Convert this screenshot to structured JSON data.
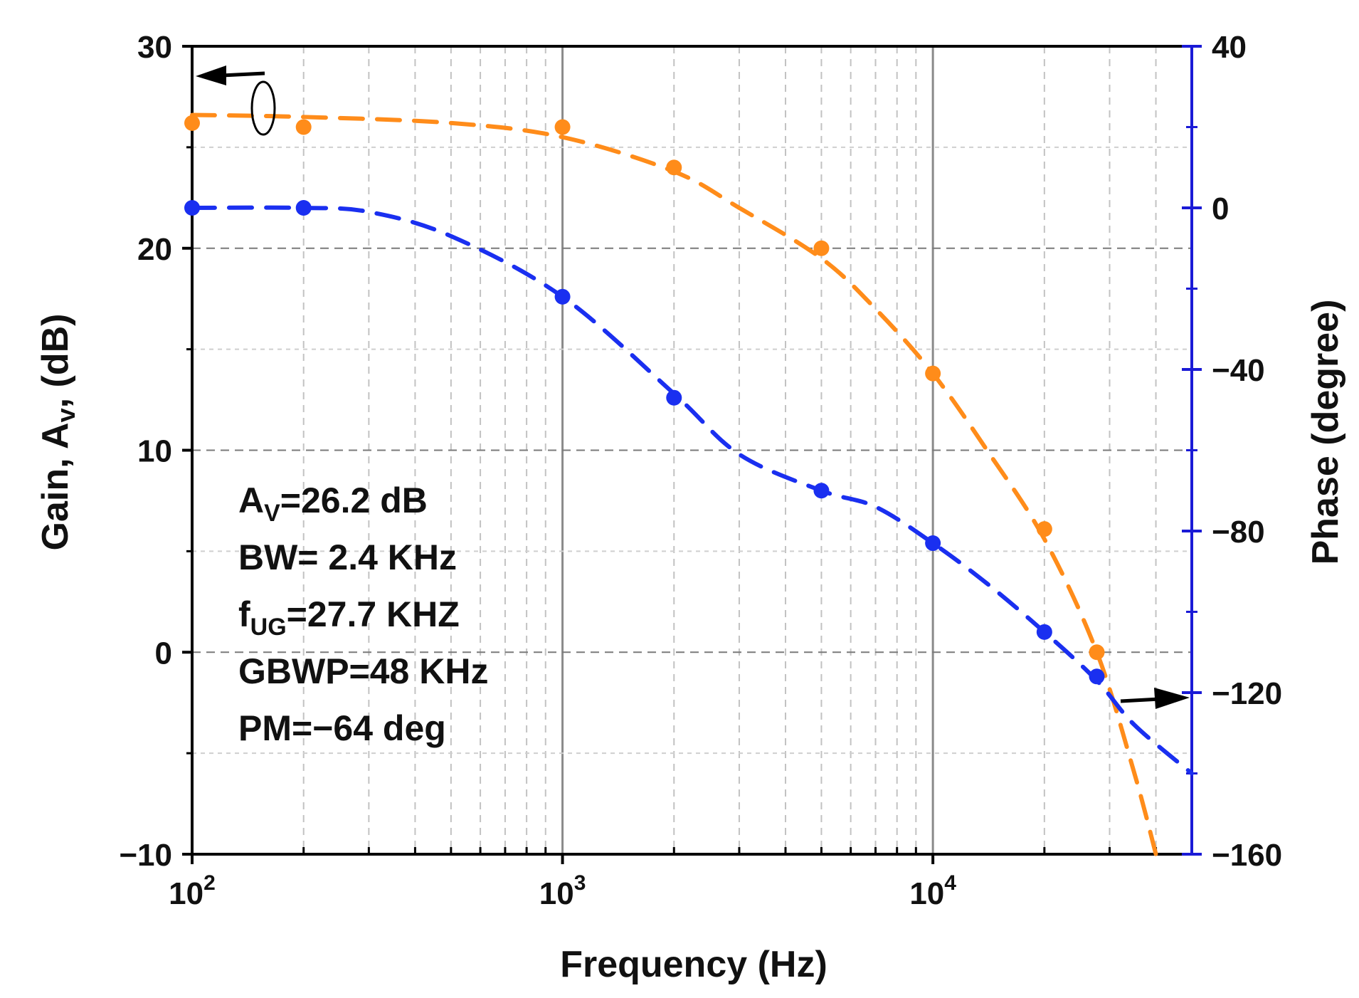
{
  "chart_data": {
    "type": "line",
    "xlabel": "Frequency (Hz)",
    "ylabel_left": {
      "pre": "Gain, A",
      "sub": "v",
      "post": ", (dB)"
    },
    "ylabel_right": "Phase (degree)",
    "x_scale": "log",
    "xlim": [
      100,
      50000
    ],
    "x_ticks": [
      {
        "value": 100,
        "base": "10",
        "exp": "2"
      },
      {
        "value": 1000,
        "base": "10",
        "exp": "3"
      },
      {
        "value": 10000,
        "base": "10",
        "exp": "4"
      }
    ],
    "ylim_left": [
      -10,
      30
    ],
    "yticks_left": [
      "30",
      "20",
      "10",
      "0",
      "−10"
    ],
    "yticks_left_values": [
      30,
      20,
      10,
      0,
      -10
    ],
    "ylim_right": [
      -160,
      40
    ],
    "yticks_right": [
      "40",
      "0",
      "−40",
      "−80",
      "−120",
      "−160"
    ],
    "yticks_right_values": [
      40,
      0,
      -40,
      -80,
      -120,
      -160
    ],
    "grid": true,
    "colors": {
      "gain": "#ff8c1a",
      "phase": "#1a2ff0",
      "right_axis": "#1a1ad6"
    },
    "series": [
      {
        "axis": "left",
        "color": "#ff8c1a",
        "points_x": [
          100,
          200,
          1000,
          2000,
          5000,
          10000,
          20000,
          27700
        ],
        "points_y": [
          26.2,
          26.0,
          26.0,
          24.0,
          20.0,
          13.8,
          6.1,
          0.0
        ],
        "curve_x": [
          100,
          200,
          500,
          1000,
          2000,
          3000,
          5000,
          7000,
          10000,
          14000,
          20000,
          27700,
          35000,
          40000
        ],
        "curve_y": [
          26.6,
          26.5,
          26.2,
          25.5,
          23.8,
          22.0,
          19.5,
          17.0,
          13.8,
          10.0,
          5.6,
          0.0,
          -6.0,
          -10.0
        ]
      },
      {
        "axis": "right",
        "color": "#1a2ff0",
        "points_x": [
          100,
          200,
          1000,
          2000,
          5000,
          10000,
          20000,
          27700
        ],
        "points_y": [
          0,
          0,
          -22,
          -47,
          -70,
          -83,
          -105,
          -116
        ],
        "curve_x": [
          100,
          200,
          300,
          500,
          1000,
          2000,
          3000,
          5000,
          7000,
          10000,
          14000,
          20000,
          27700,
          35000,
          50000
        ],
        "curve_y": [
          0,
          0,
          -1,
          -7,
          -22,
          -46,
          -61,
          -70,
          -74,
          -83,
          -93,
          -105,
          -117,
          -128,
          -140
        ]
      }
    ],
    "annotations": [
      {
        "pre": "A",
        "sub": "V",
        "post": "=26.2 dB"
      },
      {
        "pre": "BW= 2.4 KHz",
        "sub": "",
        "post": ""
      },
      {
        "pre": "f",
        "sub": "UG",
        "post": "=27.7 KHZ"
      },
      {
        "pre": "GBWP=48 KHz",
        "sub": "",
        "post": ""
      },
      {
        "pre": "PM=−64 deg",
        "sub": "",
        "post": ""
      }
    ],
    "axis_arrows": [
      {
        "direction": "left",
        "axis": "left",
        "note": "points to gain axis"
      },
      {
        "direction": "right",
        "axis": "right",
        "note": "points to phase axis"
      }
    ]
  }
}
